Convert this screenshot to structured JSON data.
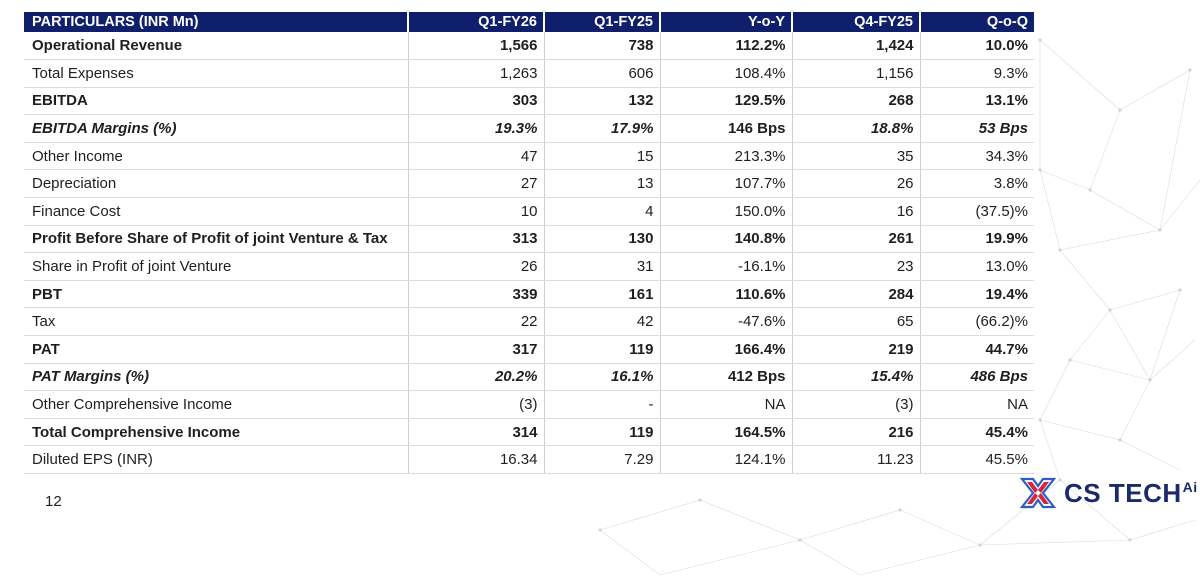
{
  "table": {
    "headers": [
      "PARTICULARS (INR Mn)",
      "Q1-FY26",
      "Q1-FY25",
      "Y-o-Y",
      "Q4-FY25",
      "Q-o-Q"
    ],
    "rows": [
      {
        "style": "bold",
        "cells": [
          "Operational Revenue",
          "1,566",
          "738",
          "112.2%",
          "1,424",
          "10.0%"
        ]
      },
      {
        "style": "normal",
        "cells": [
          "Total Expenses",
          "1,263",
          "606",
          "108.4%",
          "1,156",
          "9.3%"
        ]
      },
      {
        "style": "bold",
        "cells": [
          "EBITDA",
          "303",
          "132",
          "129.5%",
          "268",
          "13.1%"
        ]
      },
      {
        "style": "italic",
        "cells": [
          "EBITDA Margins (%)",
          "19.3%",
          "17.9%",
          "146 Bps",
          "18.8%",
          "53 Bps"
        ]
      },
      {
        "style": "normal",
        "cells": [
          "Other Income",
          "47",
          "15",
          "213.3%",
          "35",
          "34.3%"
        ]
      },
      {
        "style": "normal",
        "cells": [
          "Depreciation",
          "27",
          "13",
          "107.7%",
          "26",
          "3.8%"
        ]
      },
      {
        "style": "normal",
        "cells": [
          "Finance Cost",
          "10",
          "4",
          "150.0%",
          "16",
          "(37.5)%"
        ]
      },
      {
        "style": "bold",
        "cells": [
          "Profit Before Share of Profit of joint Venture & Tax",
          "313",
          "130",
          "140.8%",
          "261",
          "19.9%"
        ]
      },
      {
        "style": "normal",
        "cells": [
          "Share in Profit of joint Venture",
          "26",
          "31",
          "-16.1%",
          "23",
          "13.0%"
        ]
      },
      {
        "style": "bold",
        "cells": [
          "PBT",
          "339",
          "161",
          "110.6%",
          "284",
          "19.4%"
        ]
      },
      {
        "style": "normal",
        "cells": [
          "Tax",
          "22",
          "42",
          "-47.6%",
          "65",
          "(66.2)%"
        ]
      },
      {
        "style": "bold",
        "cells": [
          "PAT",
          "317",
          "119",
          "166.4%",
          "219",
          "44.7%"
        ]
      },
      {
        "style": "italic",
        "cells": [
          "PAT Margins (%)",
          "20.2%",
          "16.1%",
          "412 Bps",
          "15.4%",
          "486 Bps"
        ]
      },
      {
        "style": "normal",
        "cells": [
          "Other Comprehensive Income",
          "(3)",
          "-",
          "NA",
          "(3)",
          "NA"
        ]
      },
      {
        "style": "bold",
        "cells": [
          "Total Comprehensive Income",
          "314",
          "119",
          "164.5%",
          "216",
          "45.4%"
        ]
      },
      {
        "style": "normal",
        "cells": [
          "Diluted EPS (INR)",
          "16.34",
          "7.29",
          "124.1%",
          "11.23",
          "45.5%"
        ]
      }
    ]
  },
  "page_number": "12",
  "logo": {
    "text": "CS TECH",
    "superscript": "Ai",
    "icon": "cs-tech-x-logo-icon"
  },
  "colors": {
    "header_bg": "#0f1f6b",
    "header_text": "#ffffff",
    "logo_navy": "#1b2a6b",
    "logo_red": "#d6283a",
    "logo_blue": "#2b5dc9"
  }
}
